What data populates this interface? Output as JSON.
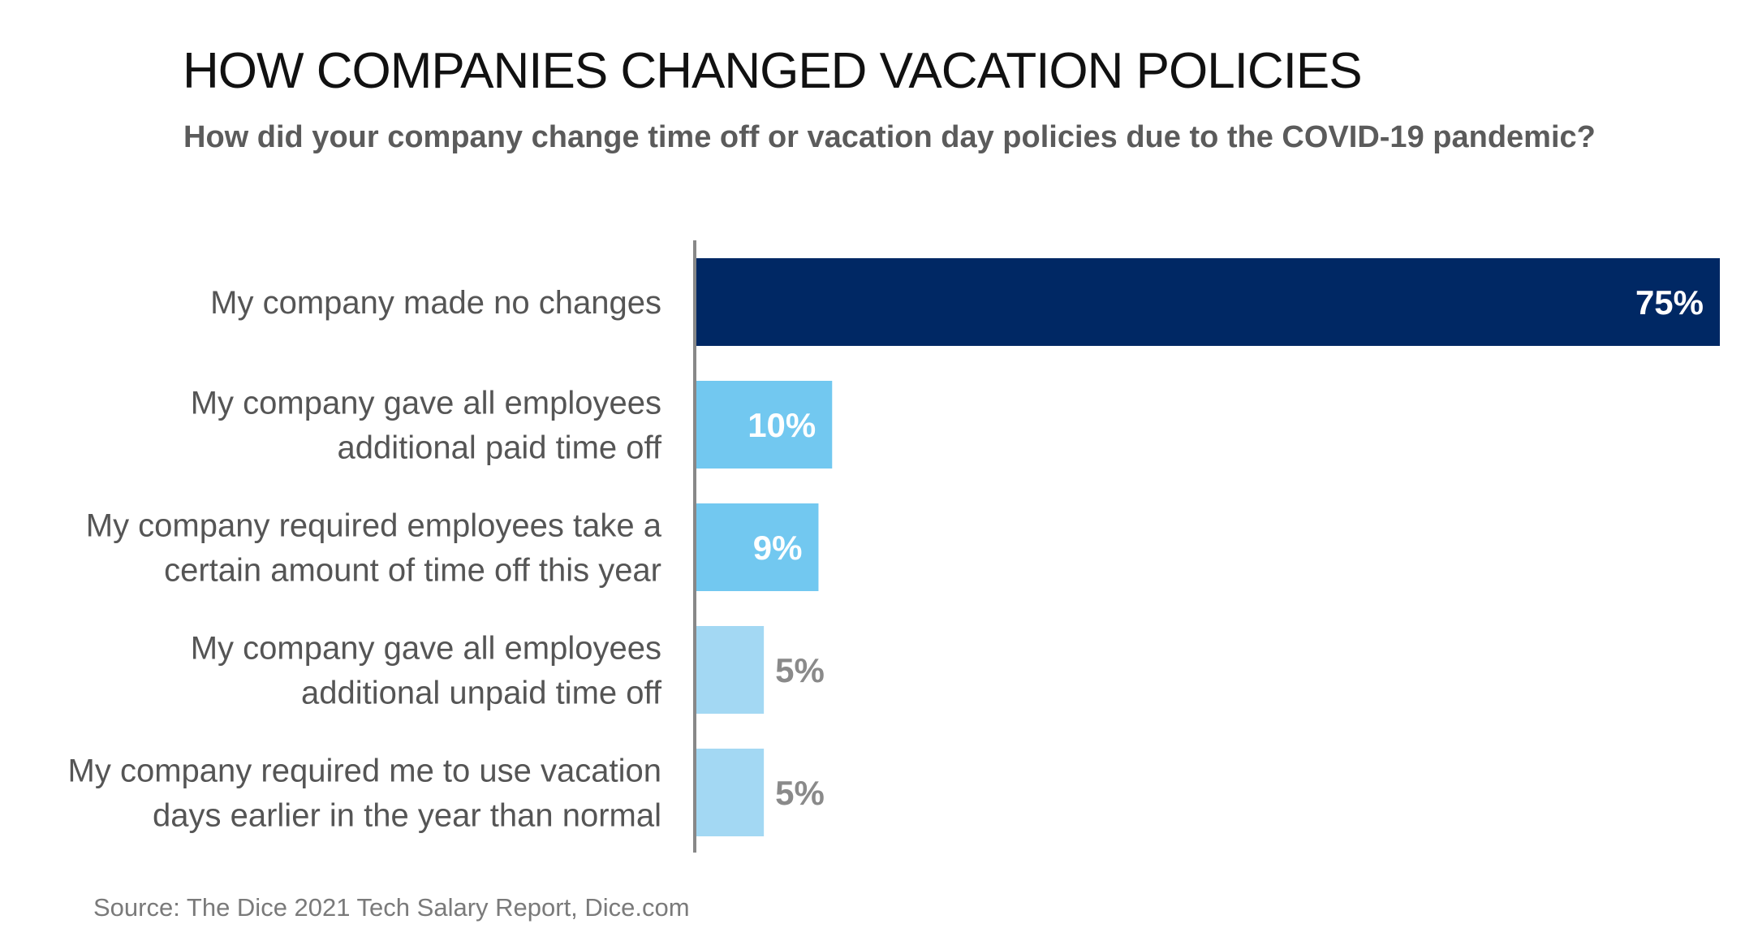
{
  "chart_data": {
    "type": "bar",
    "orientation": "horizontal",
    "title": "HOW COMPANIES CHANGED VACATION POLICIES",
    "subtitle": "How did your company change time off or vacation day policies due to the COVID-19 pandemic?",
    "categories": [
      [
        "My company made no changes"
      ],
      [
        "My company gave all employees",
        "additional paid time off"
      ],
      [
        "My company required employees take a",
        "certain amount of time off this year"
      ],
      [
        "My company gave all employees",
        "additional unpaid time off"
      ],
      [
        "My company required me to use vacation",
        "days earlier in the year than normal"
      ]
    ],
    "values": [
      75,
      10,
      9,
      5,
      5
    ],
    "value_labels": [
      "75%",
      "10%",
      "9%",
      "5%",
      "5%"
    ],
    "bar_colors": [
      "#002864",
      "#72c8f0",
      "#72c8f0",
      "#a3d8f3",
      "#a3d8f3"
    ],
    "label_colors": [
      "#ffffff",
      "#ffffff",
      "#ffffff",
      "#8a8a8a",
      "#8a8a8a"
    ],
    "label_inside": [
      true,
      true,
      true,
      false,
      false
    ],
    "xlim": [
      0,
      75
    ],
    "grid": false,
    "legend": "none",
    "source": "Source: The Dice 2021 Tech Salary Report, Dice.com"
  }
}
